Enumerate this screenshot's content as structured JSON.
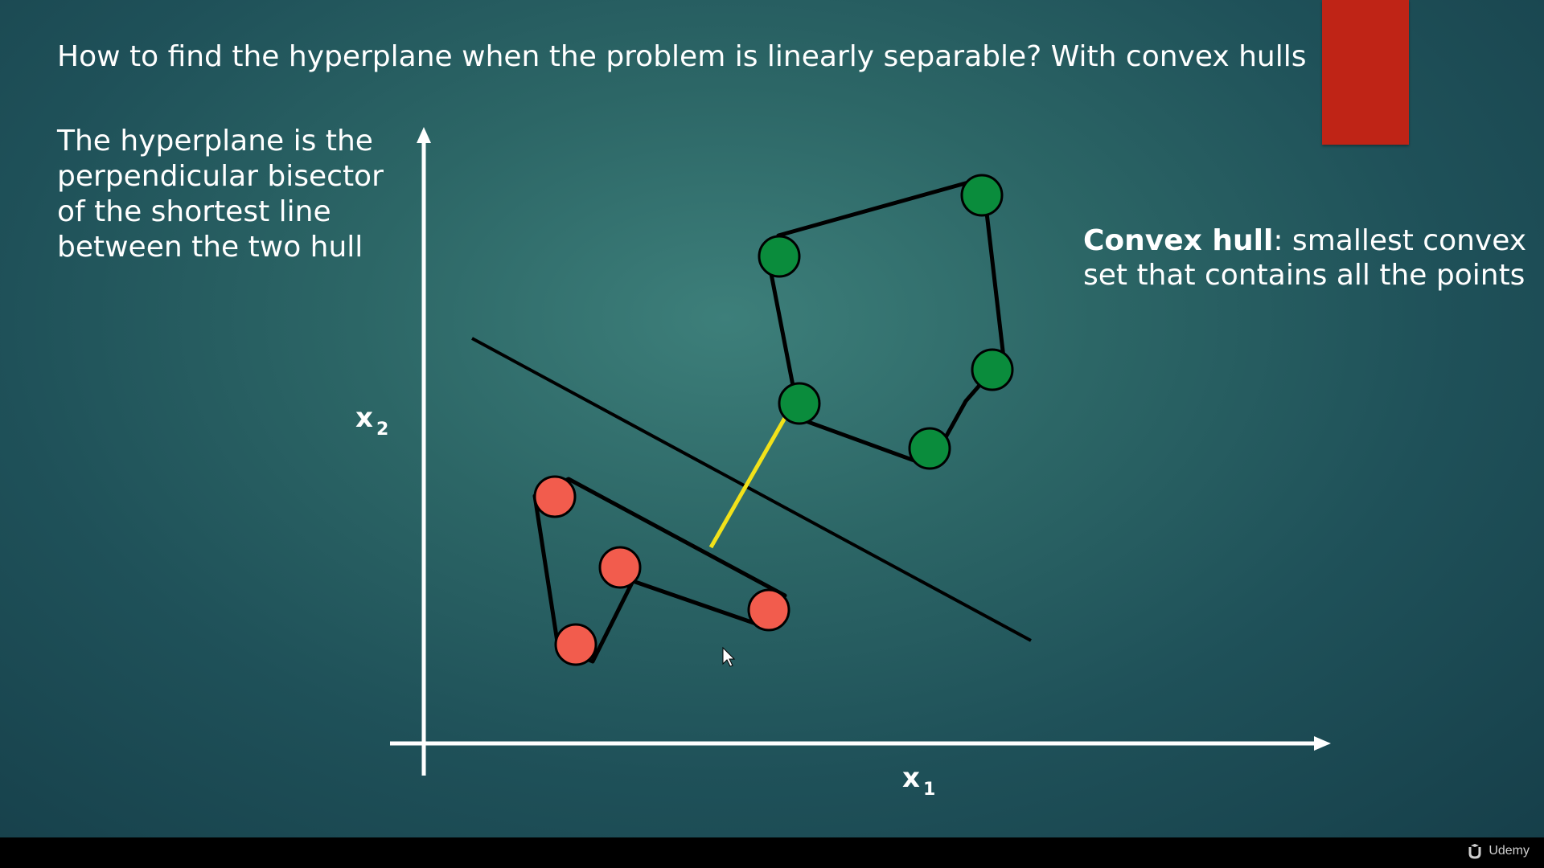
{
  "title": "How to find the hyperplane when the problem is linearly separable? With convex hulls",
  "left_text": "The hyperplane is the perpendicular bisector of the shortest line between the two hull",
  "right_text": {
    "bold": "Convex hull",
    "rest": ": smallest convex set that contains all the points"
  },
  "axes": {
    "x_label": "x",
    "x_sub": "1",
    "y_label": "x",
    "y_sub": "2"
  },
  "colors": {
    "green_point": "#0a8c3c",
    "red_point": "#f25c4d",
    "shortest_line": "#f2e21a",
    "hull_lines": "#000000",
    "axes": "#ffffff",
    "red_tab": "#bf2416"
  },
  "branding": {
    "name": "Udemy",
    "icon": "udemy-logo-icon"
  },
  "cursor": "mouse-pointer-icon"
}
